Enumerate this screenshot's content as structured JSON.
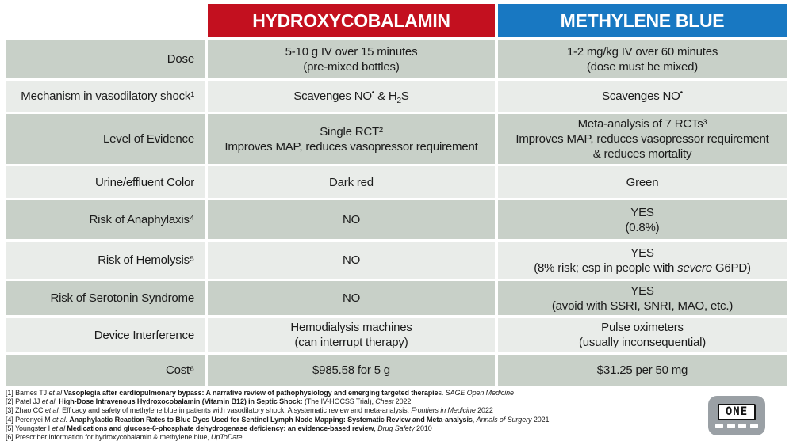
{
  "header": {
    "columns": [
      {
        "label": "HYDROXYCOBALAMIN",
        "color": "#c3101f"
      },
      {
        "label": "METHYLENE BLUE",
        "color": "#1878c2"
      }
    ]
  },
  "colors": {
    "row_dark": "#c8d0c8",
    "row_light": "#e9ece9",
    "text": "#1b1b1b",
    "logo_gray": "#9aa0a5"
  },
  "table": {
    "rows": [
      {
        "label": "Dose",
        "h": [
          "5-10 g IV over 15 minutes",
          "(pre-mixed bottles)"
        ],
        "m": [
          "1-2 mg/kg IV over 60 minutes",
          "(dose must be mixed)"
        ]
      },
      {
        "label": "Mechanism in vasodilatory shock¹",
        "h_segments": [
          {
            "t": "Scavenges NO"
          },
          {
            "t": "•",
            "sup": 1
          },
          {
            "t": " & H"
          },
          {
            "t": "2",
            "sub": 1
          },
          {
            "t": "S"
          }
        ],
        "m_segments": [
          {
            "t": "Scavenges NO"
          },
          {
            "t": "•",
            "sup": 1
          }
        ]
      },
      {
        "label": "Level of Evidence",
        "h": [
          "Single RCT²",
          "Improves MAP, reduces vasopressor requirement"
        ],
        "m": [
          "Meta-analysis of 7 RCTs³",
          "Improves MAP, reduces vasopressor requirement",
          "& reduces mortality"
        ]
      },
      {
        "label": "Urine/effluent Color",
        "h": [
          "Dark red"
        ],
        "m": [
          "Green"
        ]
      },
      {
        "label": "Risk of Anaphylaxis⁴",
        "h": [
          "NO"
        ],
        "m": [
          "YES",
          "(0.8%)"
        ]
      },
      {
        "label": "Risk of Hemolysis⁵",
        "h": [
          "NO"
        ],
        "m": [
          "YES"
        ],
        "m_line2_segments": [
          {
            "t": "(8% risk; esp in people with "
          },
          {
            "t": "severe",
            "i": 1
          },
          {
            "t": " G6PD)"
          }
        ]
      },
      {
        "label": "Risk of Serotonin Syndrome",
        "h": [
          "NO"
        ],
        "m": [
          "YES",
          "(avoid with SSRI, SNRI, MAO, etc.)"
        ]
      },
      {
        "label": "Device Interference",
        "h": [
          "Hemodialysis machines",
          "(can interrupt therapy)"
        ],
        "m": [
          "Pulse oximeters",
          "(usually inconsequential)"
        ]
      },
      {
        "label": "Cost⁶",
        "h": [
          "$985.58 for 5 g"
        ],
        "m": [
          "$31.25 per 50 mg"
        ]
      }
    ]
  },
  "footnotes": [
    [
      {
        "t": "[1] Barnes TJ "
      },
      {
        "t": "et al",
        "i": 1
      },
      {
        "t": " "
      },
      {
        "t": "Vasoplegia after cardiopulmonary bypass: A narrative review of pathophysiology and emerging targeted therapie",
        "b": 1
      },
      {
        "t": "s. "
      },
      {
        "t": "SAGE Open Medicine",
        "i": 1
      }
    ],
    [
      {
        "t": "[2] Patel JJ "
      },
      {
        "t": "et al",
        "i": 1
      },
      {
        "t": ". "
      },
      {
        "t": "High-Dose Intravenous Hydroxocobalamin (Vitamin B12) in Septic Shock:",
        "b": 1
      },
      {
        "t": " (The IV-HOCSS Trial), "
      },
      {
        "t": "Chest",
        "i": 1
      },
      {
        "t": " 2022"
      }
    ],
    [
      {
        "t": "[3]  Zhao CC "
      },
      {
        "t": "et al",
        "i": 1
      },
      {
        "t": ", Efficacy and safety of methylene blue in patients with vasodilatory shock: A systematic review and meta-analysis, "
      },
      {
        "t": "Frontiers in Medicine",
        "i": 1
      },
      {
        "t": " 2022"
      }
    ],
    [
      {
        "t": "[4] Perenyei M "
      },
      {
        "t": "et al",
        "i": 1
      },
      {
        "t": ". "
      },
      {
        "t": "Anaphylactic Reaction Rates to Blue Dyes Used for Sentinel Lymph Node Mapping: Systematic Review and Meta-analysis",
        "b": 1
      },
      {
        "t": ", "
      },
      {
        "t": "Annals of Surgery",
        "i": 1
      },
      {
        "t": " 2021"
      }
    ],
    [
      {
        "t": "[5] Youngster I "
      },
      {
        "t": "et al",
        "i": 1
      },
      {
        "t": " "
      },
      {
        "t": "Medications and glucose-6-phosphate dehydrogenase deficiency: an evidence-based review",
        "b": 1
      },
      {
        "t": ", "
      },
      {
        "t": "Drug Safety",
        "i": 1
      },
      {
        "t": " 2010"
      }
    ],
    [
      {
        "t": "[6] Prescriber information for hydroxycobalamin & methylene blue, "
      },
      {
        "t": "UpToDate",
        "i": 1
      }
    ]
  ],
  "logo": {
    "screen_text": "ONE"
  }
}
